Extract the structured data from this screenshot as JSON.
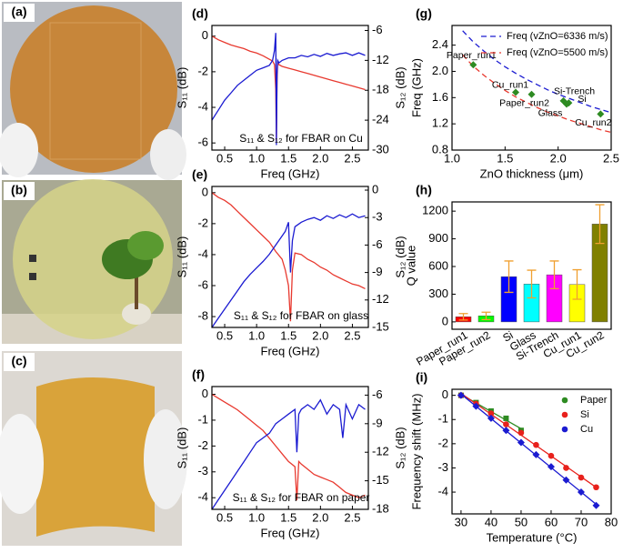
{
  "photo_labels": [
    "(a)",
    "(b)",
    "(c)"
  ],
  "chart_data": [
    {
      "type": "line",
      "label": "(d)",
      "xlabel": "Freq (GHz)",
      "ylabel": "S₁₁ (dB)",
      "y2label": "S₁₂ (dB)",
      "annotation": "S₁₁ & S₁₂ for FBAR on Cu",
      "xlim": [
        0.3,
        2.75
      ],
      "xticks": [
        0.5,
        1.0,
        1.5,
        2.0,
        2.5
      ],
      "xticklabels": [
        "0.5",
        "1.0",
        "1.5",
        "2.0",
        "2.5"
      ],
      "ylim": [
        -6.4,
        0.6
      ],
      "yticks": [
        0,
        -2,
        -4,
        -6
      ],
      "y2lim": [
        -30,
        -5
      ],
      "y2ticks": [
        -6,
        -12,
        -18,
        -24,
        -30
      ],
      "x": [
        0.3,
        0.4,
        0.5,
        0.6,
        0.7,
        0.8,
        0.9,
        1.0,
        1.1,
        1.2,
        1.25,
        1.28,
        1.3,
        1.31,
        1.32,
        1.33,
        1.35,
        1.4,
        1.5,
        1.6,
        1.7,
        1.8,
        1.9,
        2.0,
        2.1,
        2.2,
        2.3,
        2.4,
        2.5,
        2.6,
        2.7
      ],
      "series": [
        {
          "name": "S11",
          "color": "#e8392f",
          "values": [
            0,
            -0.2,
            -0.35,
            -0.5,
            -0.6,
            -0.7,
            -0.85,
            -0.95,
            -1.1,
            -1.3,
            -1.4,
            -1.6,
            -3,
            -5.9,
            -2.5,
            -1.5,
            -1.6,
            -1.7,
            -1.8,
            -1.9,
            -2.0,
            -2.1,
            -2.2,
            -2.3,
            -2.4,
            -2.5,
            -2.6,
            -2.7,
            -2.8,
            -2.9,
            -3.0
          ]
        },
        {
          "name": "S12",
          "color": "#1b1bd1",
          "axis": "y2",
          "values": [
            -24,
            -22,
            -20,
            -18.5,
            -17,
            -16,
            -15,
            -14,
            -13.5,
            -13,
            -12,
            -10,
            -6.5,
            -29,
            -15,
            -12,
            -12.5,
            -12,
            -11.5,
            -11.5,
            -11,
            -11.3,
            -10.8,
            -11.2,
            -10.6,
            -11,
            -10.7,
            -10.5,
            -11,
            -10.5,
            -11
          ]
        }
      ]
    },
    {
      "type": "line",
      "label": "(e)",
      "xlabel": "Freq (GHz)",
      "ylabel": "S₁₁ (dB)",
      "y2label": "S₁₂ (dB)",
      "annotation": "S₁₁ & S₁₂ for FBAR on glass",
      "xlim": [
        0.3,
        2.75
      ],
      "xticks": [
        0.5,
        1.0,
        1.5,
        2.0,
        2.5
      ],
      "xticklabels": [
        "0.5",
        "1.0",
        "1.5",
        "2.0",
        "2.5"
      ],
      "ylim": [
        -8.7,
        0.4
      ],
      "yticks": [
        0,
        -2,
        -4,
        -6,
        -8
      ],
      "y2lim": [
        -15,
        0.4
      ],
      "y2ticks": [
        0,
        -3,
        -6,
        -9,
        -12,
        -15
      ],
      "x": [
        0.3,
        0.4,
        0.5,
        0.6,
        0.7,
        0.8,
        0.9,
        1.0,
        1.1,
        1.2,
        1.3,
        1.4,
        1.45,
        1.5,
        1.53,
        1.56,
        1.6,
        1.7,
        1.8,
        1.9,
        2.0,
        2.1,
        2.2,
        2.3,
        2.4,
        2.5,
        2.6,
        2.7
      ],
      "series": [
        {
          "name": "S11",
          "color": "#e8392f",
          "values": [
            0,
            -0.3,
            -0.5,
            -0.8,
            -1.2,
            -1.6,
            -2.0,
            -2.4,
            -2.8,
            -3.2,
            -3.8,
            -4.3,
            -5.0,
            -6.0,
            -8.3,
            -5.0,
            -3.9,
            -4.0,
            -4.3,
            -4.5,
            -4.8,
            -5.0,
            -5.3,
            -5.5,
            -5.7,
            -5.9,
            -6.0,
            -6.2
          ]
        },
        {
          "name": "S12",
          "color": "#1b1bd1",
          "axis": "y2",
          "values": [
            -15,
            -14,
            -13,
            -12,
            -11,
            -10,
            -9.2,
            -8.5,
            -7.8,
            -7,
            -6,
            -5,
            -4.5,
            -3.5,
            -9,
            -5.5,
            -4,
            -3.5,
            -3.2,
            -3,
            -3.3,
            -2.8,
            -3.1,
            -2.7,
            -3,
            -2.6,
            -3,
            -2.8
          ]
        }
      ]
    },
    {
      "type": "line",
      "label": "(f)",
      "xlabel": "Freq (GHz)",
      "ylabel": "S₁₁ (dB)",
      "y2label": "S₁₂ (dB)",
      "annotation": "S₁₁ & S₁₂ for FBAR on paper",
      "xlim": [
        0.3,
        2.75
      ],
      "xticks": [
        0.5,
        1.0,
        1.5,
        2.0,
        2.5
      ],
      "xticklabels": [
        "0.5",
        "1.0",
        "1.5",
        "2.0",
        "2.5"
      ],
      "ylim": [
        -4.45,
        0.3
      ],
      "yticks": [
        0,
        -1,
        -2,
        -3,
        -4
      ],
      "y2lim": [
        -18,
        -5.1
      ],
      "y2ticks": [
        -6,
        -9,
        -12,
        -15,
        -18
      ],
      "x": [
        0.3,
        0.4,
        0.5,
        0.6,
        0.7,
        0.8,
        0.9,
        1.0,
        1.1,
        1.2,
        1.3,
        1.4,
        1.5,
        1.6,
        1.63,
        1.66,
        1.7,
        1.8,
        1.9,
        2.0,
        2.1,
        2.2,
        2.3,
        2.35,
        2.4,
        2.5,
        2.6,
        2.7
      ],
      "series": [
        {
          "name": "S11",
          "color": "#e8392f",
          "values": [
            0,
            -0.15,
            -0.3,
            -0.45,
            -0.6,
            -0.8,
            -1.0,
            -1.2,
            -1.4,
            -1.7,
            -2.0,
            -2.3,
            -2.6,
            -2.8,
            -4.1,
            -2.6,
            -2.7,
            -2.9,
            -3.1,
            -3.2,
            -3.3,
            -3.4,
            -3.6,
            -3.7,
            -3.8,
            -3.9,
            -4.0,
            -3.9
          ]
        },
        {
          "name": "S12",
          "color": "#1b1bd1",
          "axis": "y2",
          "values": [
            -18,
            -17,
            -16,
            -15,
            -14,
            -13,
            -12,
            -11,
            -10.5,
            -10,
            -9,
            -8.5,
            -8,
            -7.5,
            -12,
            -8,
            -7.5,
            -7,
            -7.5,
            -6.5,
            -8,
            -7,
            -7.5,
            -10.5,
            -7,
            -8.5,
            -7,
            -7.5
          ]
        }
      ]
    },
    {
      "type": "scatter",
      "label": "(g)",
      "xlabel": "ZnO thickness (μm)",
      "ylabel": "Freq (GHz)",
      "legend": "upper right",
      "xlim": [
        1.0,
        2.5
      ],
      "xticks": [
        {
          "value": 1.0,
          "label": "1.0"
        },
        1.5,
        {
          "value": 2.0,
          "label": "2.0"
        },
        2.5
      ],
      "ylim": [
        0.8,
        2.7
      ],
      "yticks": [
        0.8,
        1.2,
        1.6,
        {
          "value": 2.0,
          "label": "2.0"
        },
        2.4
      ],
      "x": [
        1.1,
        1.2,
        1.3,
        1.4,
        1.5,
        1.6,
        1.7,
        1.8,
        1.9,
        2.0,
        2.1,
        2.2,
        2.3,
        2.4,
        2.5
      ],
      "series": [
        {
          "name": "Freq (vZnO=6336 m/s)",
          "color": "#1b1bd1",
          "dashed": true,
          "values": [
            2.62,
            2.45,
            2.31,
            2.18,
            2.07,
            1.97,
            1.88,
            1.8,
            1.72,
            1.65,
            1.59,
            1.53,
            1.47,
            1.42,
            1.37
          ]
        },
        {
          "name": "Freq (vZnO=5500 m/s)",
          "color": "#e8392f",
          "dashed": true,
          "values": [
            2.25,
            2.08,
            1.94,
            1.82,
            1.71,
            1.61,
            1.53,
            1.45,
            1.38,
            1.32,
            1.26,
            1.21,
            1.16,
            1.11,
            1.07
          ]
        }
      ],
      "points": {
        "color": "#2e8b22",
        "labels": [
          "Paper_run1",
          "Cu_run1",
          "Paper_run2",
          "Si-Trench",
          "Si",
          "Glass",
          "Cu_run2"
        ],
        "x": [
          1.2,
          1.6,
          1.75,
          2.05,
          2.1,
          2.08,
          2.4
        ],
        "values": [
          2.1,
          1.68,
          1.65,
          1.55,
          1.52,
          1.5,
          1.35
        ]
      }
    },
    {
      "type": "bar",
      "label": "(h)",
      "ylabel": "Q value",
      "categories": [
        "Paper_run1",
        "Paper_run2",
        "Si",
        "Glass",
        "Si-Trench",
        "Cu_run1",
        "Cu_run2"
      ],
      "values": [
        55,
        65,
        490,
        410,
        510,
        405,
        1060
      ],
      "errors": [
        35,
        40,
        170,
        150,
        150,
        160,
        210
      ],
      "colors": [
        "#ff0000",
        "#00ff00",
        "#0000ff",
        "#00ffff",
        "#ff00ff",
        "#ffff00",
        "#808000"
      ],
      "error_color": "#f0a030",
      "ylim": [
        -80,
        1300
      ],
      "yticks": [
        0,
        300,
        600,
        900,
        1200
      ]
    },
    {
      "type": "scatter",
      "label": "(i)",
      "xlabel": "Temperature (°C)",
      "ylabel": "Frequency shift (MHz)",
      "legend": "upper right",
      "fit": true,
      "xlim": [
        27,
        80
      ],
      "xticks": [
        30,
        40,
        50,
        60,
        70,
        80
      ],
      "ylim": [
        -4.9,
        0.25
      ],
      "yticks": [
        0,
        -1,
        -2,
        -3,
        -4
      ],
      "series": [
        {
          "name": "Paper",
          "color": "#2e8b22",
          "marker": "square",
          "x": [
            30,
            35,
            40,
            45,
            50
          ],
          "values": [
            0,
            -0.3,
            -0.65,
            -0.95,
            -1.45
          ]
        },
        {
          "name": "Si",
          "color": "#e8211c",
          "marker": "circle",
          "x": [
            30,
            35,
            40,
            45,
            50,
            55,
            60,
            65,
            70,
            75
          ],
          "values": [
            0,
            -0.35,
            -0.75,
            -1.2,
            -1.55,
            -2.05,
            -2.5,
            -3.0,
            -3.4,
            -3.8
          ]
        },
        {
          "name": "Cu",
          "color": "#1b1bd1",
          "marker": "diamond",
          "x": [
            30,
            35,
            40,
            45,
            50,
            55,
            60,
            65,
            70,
            75
          ],
          "values": [
            0,
            -0.45,
            -0.95,
            -1.45,
            -1.95,
            -2.45,
            -2.95,
            -3.5,
            -4.0,
            -4.55
          ]
        }
      ]
    }
  ]
}
